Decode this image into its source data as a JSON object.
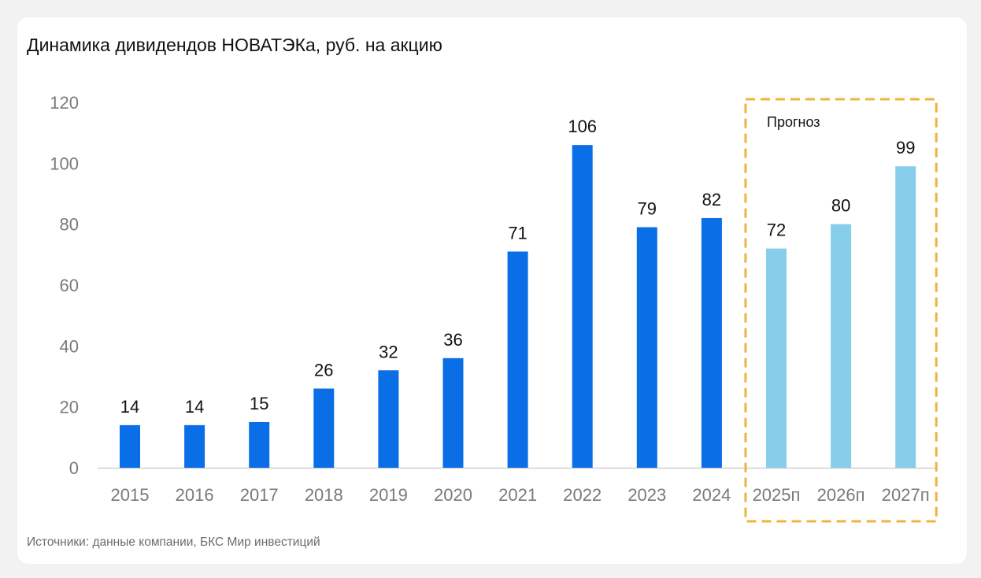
{
  "title": "Динамика дивидендов НОВАТЭКа, руб. на акцию",
  "source": "Источники: данные компании, БКС Мир инвестиций",
  "forecast_label": "Прогноз",
  "colors": {
    "actual": "#0a6ee6",
    "forecast": "#87ceeb",
    "forecast_frame": "#f0b43c",
    "axis": "#d0d0d0"
  },
  "chart_data": {
    "type": "bar",
    "title": "Динамика дивидендов НОВАТЭКа, руб. на акцию",
    "xlabel": "",
    "ylabel": "",
    "ylim": [
      0,
      120
    ],
    "yticks": [
      0,
      20,
      40,
      60,
      80,
      100,
      120
    ],
    "grid": false,
    "categories": [
      "2015",
      "2016",
      "2017",
      "2018",
      "2019",
      "2020",
      "2021",
      "2022",
      "2023",
      "2024",
      "2025п",
      "2026п",
      "2027п"
    ],
    "values": [
      14,
      14,
      15,
      26,
      32,
      36,
      71,
      106,
      79,
      82,
      72,
      80,
      99
    ],
    "forecast": [
      false,
      false,
      false,
      false,
      false,
      false,
      false,
      false,
      false,
      false,
      true,
      true,
      true
    ],
    "annotations": [
      "Прогноз"
    ]
  }
}
